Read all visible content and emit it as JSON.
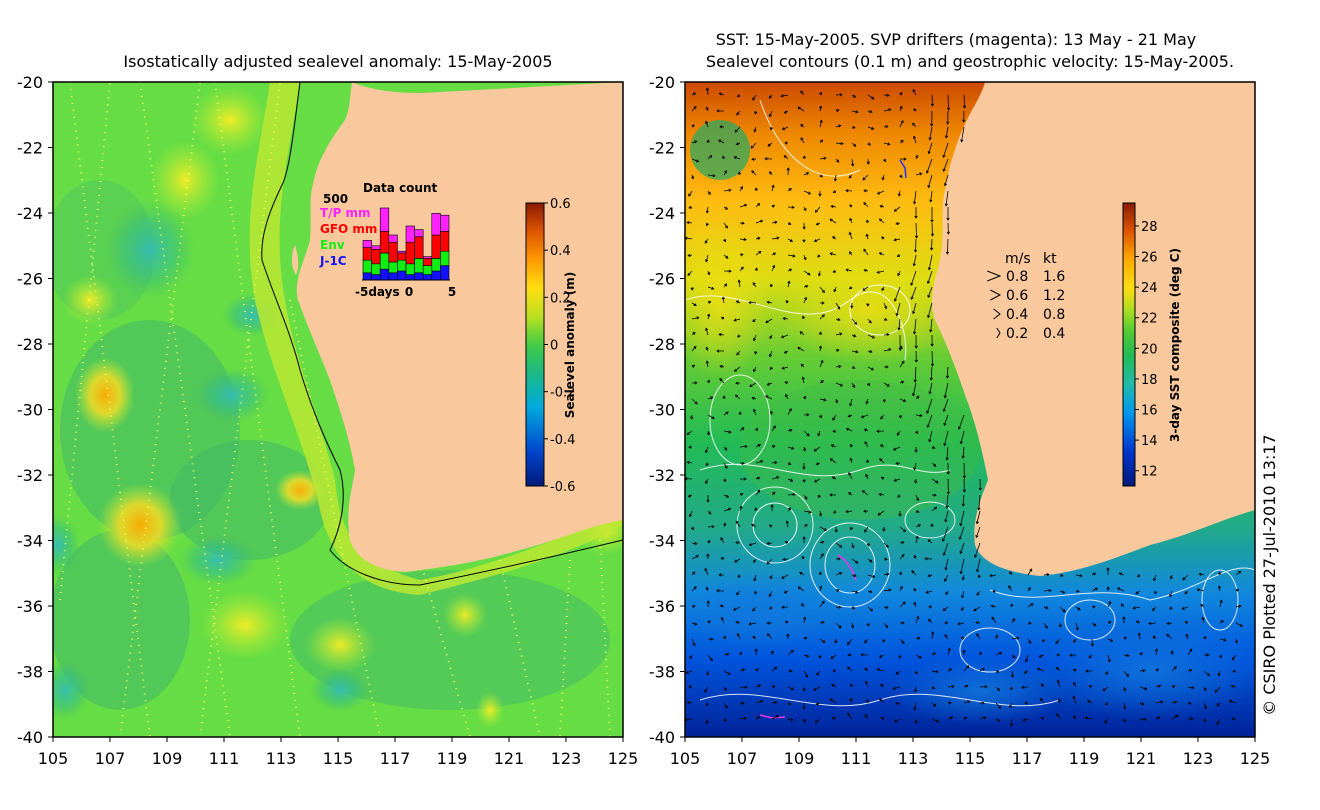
{
  "left_panel": {
    "title": "Isostatically adjusted sealevel anomaly: 15-May-2005",
    "x_ticks": [
      "105",
      "107",
      "109",
      "111",
      "113",
      "115",
      "117",
      "119",
      "121",
      "123",
      "125"
    ],
    "y_ticks": [
      "-20",
      "-22",
      "-24",
      "-26",
      "-28",
      "-30",
      "-32",
      "-34",
      "-36",
      "-38",
      "-40"
    ],
    "colorbar": {
      "label": "Sealevel anomaly (m)",
      "ticks": [
        "0.6",
        "0.4",
        "0.2",
        "0",
        "-0.2",
        "-0.4",
        "-0.6"
      ],
      "range": [
        -0.6,
        0.6
      ]
    },
    "data_count": {
      "title": "Data count",
      "y_max_label": "500",
      "legend": [
        {
          "label": "T/P mm",
          "color": "#ff22ff"
        },
        {
          "label": "GFO mm",
          "color": "#ff0000"
        },
        {
          "label": "Env",
          "color": "#11ee11"
        },
        {
          "label": "J-1C",
          "color": "#1111ff"
        }
      ],
      "x_labels": [
        "-5days",
        "0",
        "5"
      ],
      "bars": [
        {
          "day": -5,
          "jc": 40,
          "env": 70,
          "gfo": 70,
          "tp": 40
        },
        {
          "day": -4,
          "jc": 30,
          "env": 60,
          "gfo": 80,
          "tp": 20
        },
        {
          "day": -3,
          "jc": 60,
          "env": 90,
          "gfo": 120,
          "tp": 130
        },
        {
          "day": -2,
          "jc": 40,
          "env": 60,
          "gfo": 110,
          "tp": 40
        },
        {
          "day": -1,
          "jc": 50,
          "env": 60,
          "gfo": 40,
          "tp": 10
        },
        {
          "day": 0,
          "jc": 30,
          "env": 60,
          "gfo": 120,
          "tp": 90
        },
        {
          "day": 1,
          "jc": 40,
          "env": 80,
          "gfo": 120,
          "tp": 40
        },
        {
          "day": 2,
          "jc": 30,
          "env": 50,
          "gfo": 40,
          "tp": 10
        },
        {
          "day": 3,
          "jc": 50,
          "env": 70,
          "gfo": 130,
          "tp": 120
        },
        {
          "day": 4,
          "jc": 80,
          "env": 80,
          "gfo": 110,
          "tp": 90
        }
      ]
    }
  },
  "right_panel": {
    "title_line1": "SST: 15-May-2005. SVP drifters (magenta): 13 May - 21 May",
    "title_line2": "Sealevel contours (0.1 m) and geostrophic velocity: 15-May-2005.",
    "x_ticks": [
      "105",
      "107",
      "109",
      "111",
      "113",
      "115",
      "117",
      "119",
      "121",
      "123",
      "125"
    ],
    "y_ticks": [
      "-20",
      "-22",
      "-24",
      "-26",
      "-28",
      "-30",
      "-32",
      "-34",
      "-36",
      "-38",
      "-40"
    ],
    "colorbar": {
      "label": "3-day SST composite (deg C)",
      "ticks": [
        "28",
        "26",
        "24",
        "22",
        "20",
        "18",
        "16",
        "14",
        "12"
      ],
      "range": [
        11,
        29.5
      ]
    },
    "velocity_legend": {
      "header_ms": "m/s",
      "header_kt": "kt",
      "rows": [
        {
          "ms": "0.8",
          "kt": "1.6"
        },
        {
          "ms": "0.6",
          "kt": "1.2"
        },
        {
          "ms": "0.4",
          "kt": "0.8"
        },
        {
          "ms": "0.2",
          "kt": "0.4"
        }
      ]
    }
  },
  "credit": "© CSIRO Plotted 27-Jul-2010 13:17",
  "colors": {
    "land": "#f9c89d",
    "sla_background": "#66dd44",
    "drifter": "#ee33ee"
  }
}
